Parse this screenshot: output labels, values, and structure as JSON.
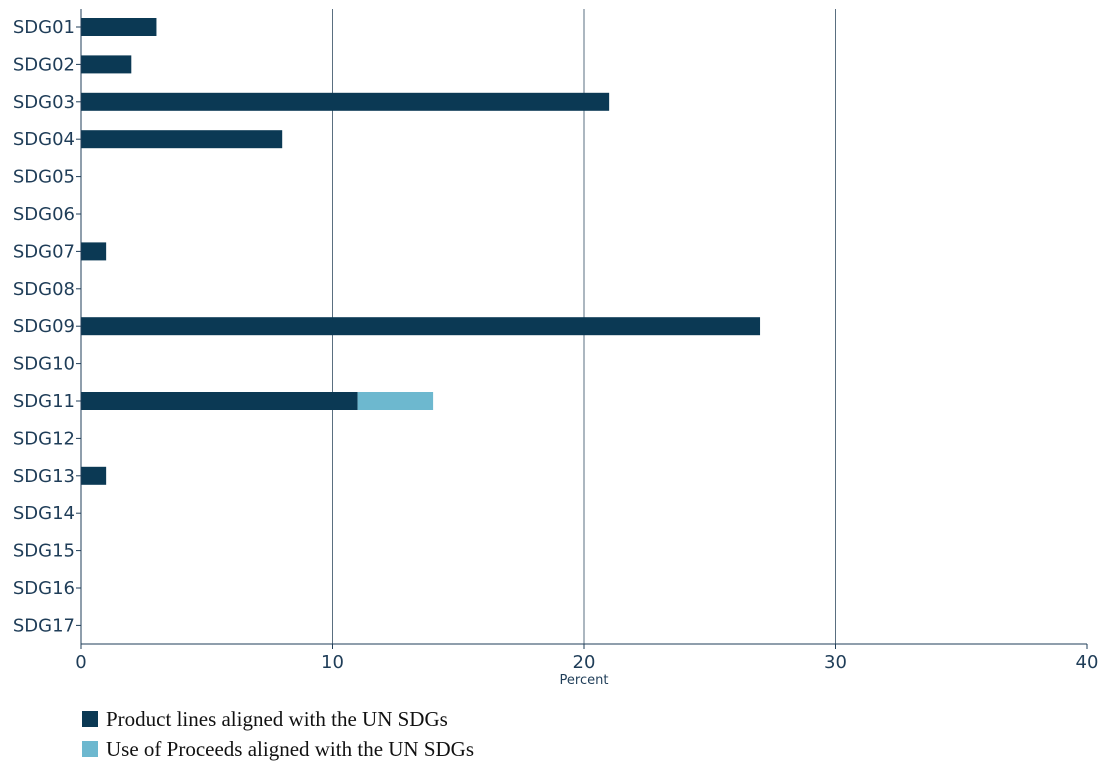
{
  "chart_data": {
    "type": "bar",
    "orientation": "horizontal",
    "stacked": true,
    "categories": [
      "SDG01",
      "SDG02",
      "SDG03",
      "SDG04",
      "SDG05",
      "SDG06",
      "SDG07",
      "SDG08",
      "SDG09",
      "SDG10",
      "SDG11",
      "SDG12",
      "SDG13",
      "SDG14",
      "SDG15",
      "SDG16",
      "SDG17"
    ],
    "series": [
      {
        "name": "Product lines aligned with the UN SDGs",
        "color": "#0b3954",
        "values": [
          3,
          2,
          21,
          8,
          0,
          0,
          1,
          0,
          27,
          0,
          11,
          0,
          1,
          0,
          0,
          0,
          0
        ]
      },
      {
        "name": "Use of Proceeds aligned with the UN SDGs",
        "color": "#6db8cf",
        "values": [
          0,
          0,
          0,
          0,
          0,
          0,
          0,
          0,
          0,
          0,
          3,
          0,
          0,
          0,
          0,
          0,
          0
        ]
      }
    ],
    "xlabel": "Percent",
    "ylabel": "",
    "xlim": [
      0,
      40
    ],
    "xticks": [
      "0",
      "10",
      "20",
      "30",
      "40"
    ],
    "xtick_values": [
      0,
      10,
      20,
      30,
      40
    ],
    "grid": true,
    "legend_position": "bottom-left"
  }
}
